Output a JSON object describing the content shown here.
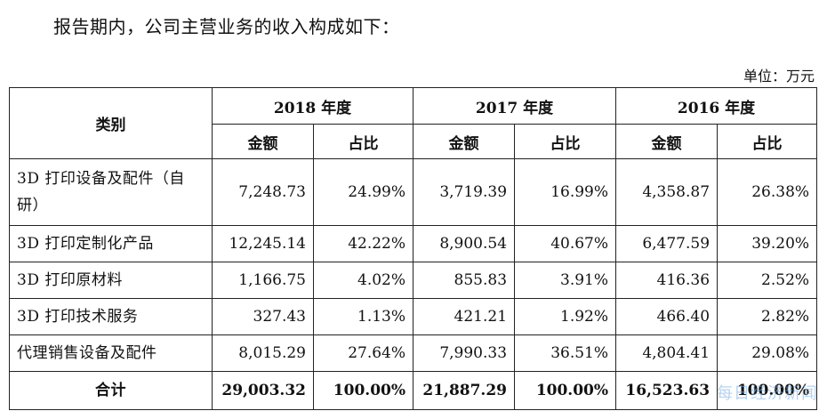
{
  "intro": "报告期内，公司主营业务的收入构成如下：",
  "unit": "单位：万元",
  "headers": {
    "category": "类别",
    "years": [
      "2018 年度",
      "2017 年度",
      "2016 年度"
    ],
    "amount": "金额",
    "ratio": "占比"
  },
  "rows": [
    {
      "category": "3D 打印设备及配件（自研）",
      "values": [
        "7,248.73",
        "24.99%",
        "3,719.39",
        "16.99%",
        "4,358.87",
        "26.38%"
      ]
    },
    {
      "category": "3D 打印定制化产品",
      "values": [
        "12,245.14",
        "42.22%",
        "8,900.54",
        "40.67%",
        "6,477.59",
        "39.20%"
      ]
    },
    {
      "category": "3D 打印原材料",
      "values": [
        "1,166.75",
        "4.02%",
        "855.83",
        "3.91%",
        "416.36",
        "2.52%"
      ]
    },
    {
      "category": "3D 打印技术服务",
      "values": [
        "327.43",
        "1.13%",
        "421.21",
        "1.92%",
        "466.40",
        "2.82%"
      ]
    },
    {
      "category": "代理销售设备及配件",
      "values": [
        "8,015.29",
        "27.64%",
        "7,990.33",
        "36.51%",
        "4,804.41",
        "29.08%"
      ]
    }
  ],
  "total": {
    "category": "合计",
    "values": [
      "29,003.32",
      "100.00%",
      "21,887.29",
      "100.00%",
      "16,523.63",
      "100.00%"
    ]
  },
  "watermark": "每日经济新闻"
}
